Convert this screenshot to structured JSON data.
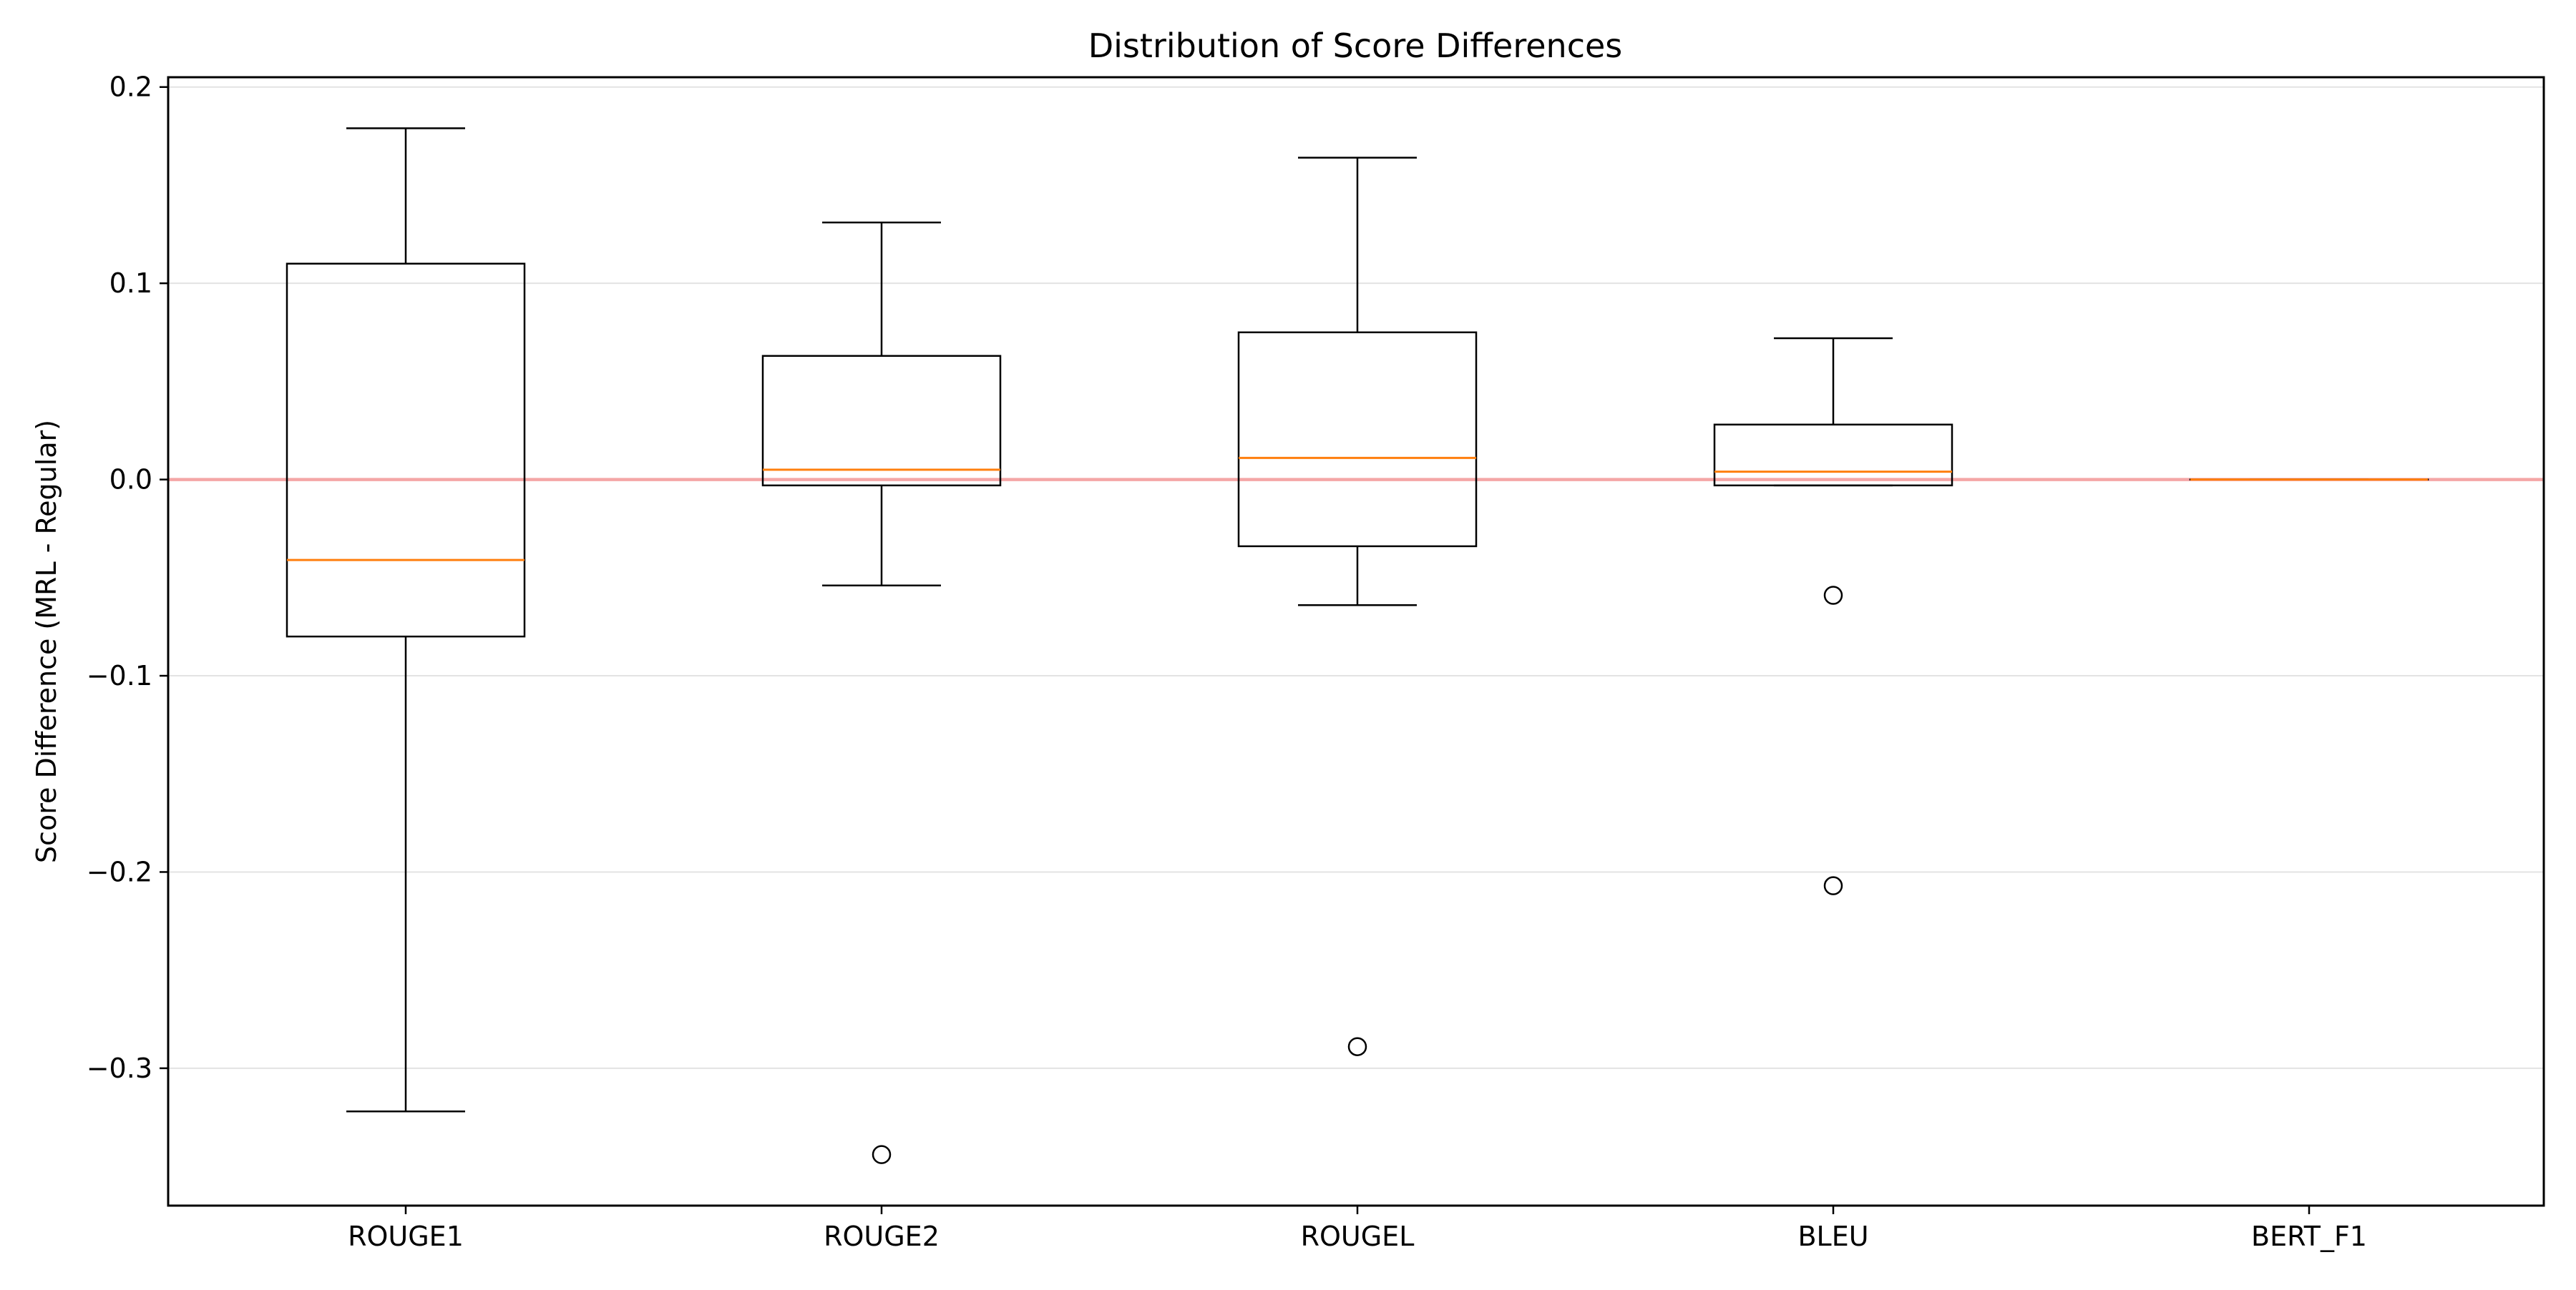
{
  "chart_data": {
    "type": "boxplot",
    "title": "Distribution of Score Differences",
    "xlabel": "",
    "ylabel": "Score Difference (MRL - Regular)",
    "ylim": [
      -0.37,
      0.205
    ],
    "yticks": [
      -0.3,
      -0.2,
      -0.1,
      0.0,
      0.1,
      0.2
    ],
    "ytick_labels": [
      "−0.3",
      "−0.2",
      "−0.1",
      "0.0",
      "0.1",
      "0.2"
    ],
    "grid": "y-axis only, light gray",
    "reference_line": {
      "y": 0.0,
      "color": "#f4a6a6"
    },
    "box_color": "#000000",
    "median_color": "#ff7f0e",
    "categories": [
      "ROUGE1",
      "ROUGE2",
      "ROUGEL",
      "BLEU",
      "BERT_F1"
    ],
    "boxes": [
      {
        "name": "ROUGE1",
        "whisker_low": -0.322,
        "q1": -0.08,
        "median": -0.041,
        "q3": 0.11,
        "whisker_high": 0.179,
        "outliers": []
      },
      {
        "name": "ROUGE2",
        "whisker_low": -0.054,
        "q1": -0.003,
        "median": 0.005,
        "q3": 0.063,
        "whisker_high": 0.131,
        "outliers": [
          -0.344
        ]
      },
      {
        "name": "ROUGEL",
        "whisker_low": -0.064,
        "q1": -0.034,
        "median": 0.011,
        "q3": 0.075,
        "whisker_high": 0.164,
        "outliers": [
          -0.289
        ]
      },
      {
        "name": "BLEU",
        "whisker_low": -0.003,
        "q1": -0.003,
        "median": 0.004,
        "q3": 0.028,
        "whisker_high": 0.072,
        "outliers": [
          -0.059,
          -0.207
        ]
      },
      {
        "name": "BERT_F1",
        "whisker_low": 0.0,
        "q1": 0.0,
        "median": 0.0,
        "q3": 0.0,
        "whisker_high": 0.0,
        "outliers": []
      }
    ]
  }
}
